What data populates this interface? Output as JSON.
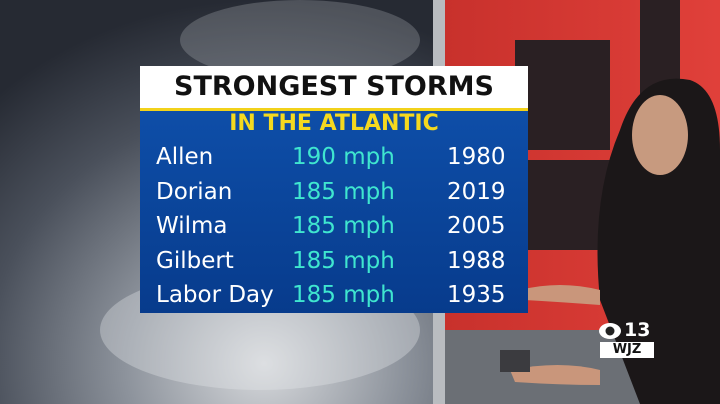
{
  "graphic": {
    "title": "STRONGEST STORMS",
    "subtitle": "IN THE ATLANTIC",
    "table": {
      "rows": [
        [
          "Allen",
          "190 mph",
          "1980"
        ],
        [
          "Dorian",
          "185 mph",
          "2019"
        ],
        [
          "Wilma",
          "185 mph",
          "2005"
        ],
        [
          "Gilbert",
          "185 mph",
          "1988"
        ],
        [
          "Labor Day",
          "185 mph",
          "1935"
        ]
      ]
    }
  },
  "logo": {
    "number": "13",
    "call": "WJZ"
  }
}
